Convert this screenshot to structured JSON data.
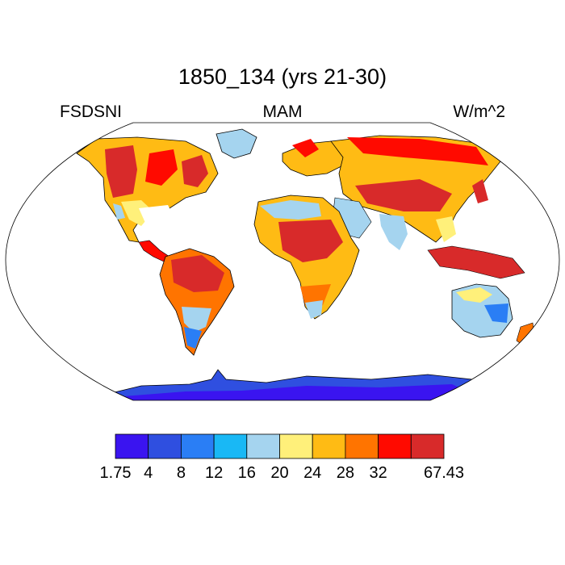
{
  "title": "1850_134 (yrs 21-30)",
  "left_label": "FSDSNI",
  "center_label": "MAM",
  "right_label": "W/m^2",
  "colorbar": {
    "colors": [
      "#3a14f0",
      "#2f4fe0",
      "#2a7ef5",
      "#19b8f5",
      "#a5d4ef",
      "#fff07a",
      "#ffbb14",
      "#ff7400",
      "#ff0a00",
      "#d82a2a"
    ],
    "labels": [
      "1.75",
      "4",
      "8",
      "12",
      "16",
      "20",
      "24",
      "28",
      "32",
      "67.43"
    ]
  },
  "colors": {
    "land_outline": "#000000",
    "map_border": "#000000"
  }
}
